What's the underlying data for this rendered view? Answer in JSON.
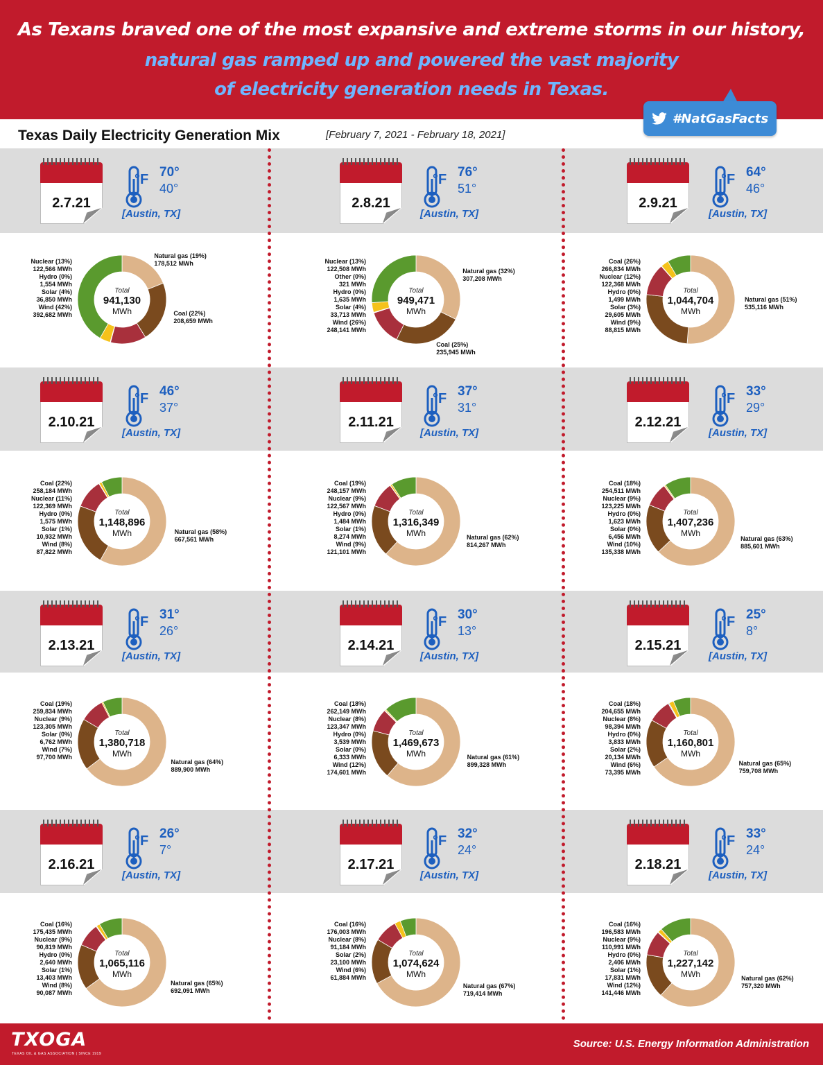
{
  "header": {
    "line1": "As Texans braved one of the most expansive and extreme storms in our history,",
    "line2": "natural gas ramped up and powered the vast majority",
    "line3": "of electricity generation needs in Texas.",
    "hashtag": "#NatGasFacts",
    "hashtag_icon": "twitter-bird-icon"
  },
  "subheader": {
    "title": "Texas Daily Electricity Generation Mix",
    "range": "[February 7, 2021 - February 18, 2021]"
  },
  "footer": {
    "logo": "TXOGA",
    "logo_tagline": "TEXAS OIL & GAS ASSOCIATION | SINCE 1919",
    "source": "Source: U.S. Energy Information Administration"
  },
  "colors": {
    "brand_red": "#c11b2c",
    "temperature_blue": "#1d5fbf",
    "natural_gas": "#ddb48a",
    "coal": "#7a4a1e",
    "nuclear": "#a8303c",
    "hydro": "#6fb6e6",
    "solar": "#f5c21b",
    "wind": "#5a9a2e",
    "other": "#8e6ab0"
  },
  "chart_data": [
    {
      "type": "pie",
      "date": "2.7.21",
      "high": "70°",
      "low": "40°",
      "unit": "°F",
      "location": "[Austin, TX]",
      "total_label": "Total",
      "total": "941,130",
      "total_unit": "MWh",
      "slices": [
        {
          "source": "Natural gas",
          "pct": "19%",
          "mwh": "178,512 MWh",
          "value": 178512
        },
        {
          "source": "Coal",
          "pct": "22%",
          "mwh": "208,659 MWh",
          "value": 208659
        },
        {
          "source": "Nuclear",
          "pct": "13%",
          "mwh": "122,566 MWh",
          "value": 122566
        },
        {
          "source": "Hydro",
          "pct": "0%",
          "mwh": "1,554 MWh",
          "value": 1554
        },
        {
          "source": "Solar",
          "pct": "4%",
          "mwh": "36,850 MWh",
          "value": 36850
        },
        {
          "source": "Wind",
          "pct": "42%",
          "mwh": "392,682 MWh",
          "value": 392682
        }
      ]
    },
    {
      "type": "pie",
      "date": "2.8.21",
      "high": "76°",
      "low": "51°",
      "unit": "°F",
      "location": "[Austin, TX]",
      "total_label": "Total",
      "total": "949,471",
      "total_unit": "MWh",
      "slices": [
        {
          "source": "Natural gas",
          "pct": "32%",
          "mwh": "307,208 MWh",
          "value": 307208
        },
        {
          "source": "Coal",
          "pct": "25%",
          "mwh": "235,945 MWh",
          "value": 235945
        },
        {
          "source": "Nuclear",
          "pct": "13%",
          "mwh": "122,508 MWh",
          "value": 122508
        },
        {
          "source": "Other",
          "pct": "0%",
          "mwh": "321 MWh",
          "value": 321
        },
        {
          "source": "Hydro",
          "pct": "0%",
          "mwh": "1,635 MWh",
          "value": 1635
        },
        {
          "source": "Solar",
          "pct": "4%",
          "mwh": "33,713 MWh",
          "value": 33713
        },
        {
          "source": "Wind",
          "pct": "26%",
          "mwh": "248,141 MWh",
          "value": 248141
        }
      ]
    },
    {
      "type": "pie",
      "date": "2.9.21",
      "high": "64°",
      "low": "46°",
      "unit": "°F",
      "location": "[Austin, TX]",
      "total_label": "Total",
      "total": "1,044,704",
      "total_unit": "MWh",
      "slices": [
        {
          "source": "Natural gas",
          "pct": "51%",
          "mwh": "535,116 MWh",
          "value": 535116
        },
        {
          "source": "Coal",
          "pct": "26%",
          "mwh": "266,834 MWh",
          "value": 266834
        },
        {
          "source": "Nuclear",
          "pct": "12%",
          "mwh": "122,368 MWh",
          "value": 122368
        },
        {
          "source": "Hydro",
          "pct": "0%",
          "mwh": "1,499 MWh",
          "value": 1499
        },
        {
          "source": "Solar",
          "pct": "3%",
          "mwh": "29,605 MWh",
          "value": 29605
        },
        {
          "source": "Wind",
          "pct": "9%",
          "mwh": "88,815 MWh",
          "value": 88815
        }
      ]
    },
    {
      "type": "pie",
      "date": "2.10.21",
      "high": "46°",
      "low": "37°",
      "unit": "°F",
      "location": "[Austin, TX]",
      "total_label": "Total",
      "total": "1,148,896",
      "total_unit": "MWh",
      "slices": [
        {
          "source": "Natural gas",
          "pct": "58%",
          "mwh": "667,561 MWh",
          "value": 667561
        },
        {
          "source": "Coal",
          "pct": "22%",
          "mwh": "258,184 MWh",
          "value": 258184
        },
        {
          "source": "Nuclear",
          "pct": "11%",
          "mwh": "122,369 MWh",
          "value": 122369
        },
        {
          "source": "Hydro",
          "pct": "0%",
          "mwh": "1,575 MWh",
          "value": 1575
        },
        {
          "source": "Solar",
          "pct": "1%",
          "mwh": "10,932 MWh",
          "value": 10932
        },
        {
          "source": "Wind",
          "pct": "8%",
          "mwh": "87,822 MWh",
          "value": 87822
        }
      ]
    },
    {
      "type": "pie",
      "date": "2.11.21",
      "high": "37°",
      "low": "31°",
      "unit": "°F",
      "location": "[Austin, TX]",
      "total_label": "Total",
      "total": "1,316,349",
      "total_unit": "MWh",
      "slices": [
        {
          "source": "Natural gas",
          "pct": "62%",
          "mwh": "814,267 MWh",
          "value": 814267
        },
        {
          "source": "Coal",
          "pct": "19%",
          "mwh": "248,157 MWh",
          "value": 248157
        },
        {
          "source": "Nuclear",
          "pct": "9%",
          "mwh": "122,567 MWh",
          "value": 122567
        },
        {
          "source": "Hydro",
          "pct": "0%",
          "mwh": "1,484 MWh",
          "value": 1484
        },
        {
          "source": "Solar",
          "pct": "1%",
          "mwh": "8,274 MWh",
          "value": 8274
        },
        {
          "source": "Wind",
          "pct": "9%",
          "mwh": "121,101 MWh",
          "value": 121101
        }
      ]
    },
    {
      "type": "pie",
      "date": "2.12.21",
      "high": "33°",
      "low": "29°",
      "unit": "°F",
      "location": "[Austin, TX]",
      "total_label": "Total",
      "total": "1,407,236",
      "total_unit": "MWh",
      "slices": [
        {
          "source": "Natural gas",
          "pct": "63%",
          "mwh": "885,601 MWh",
          "value": 885601
        },
        {
          "source": "Coal",
          "pct": "18%",
          "mwh": "254,511 MWh",
          "value": 254511
        },
        {
          "source": "Nuclear",
          "pct": "9%",
          "mwh": "123,225 MWh",
          "value": 123225
        },
        {
          "source": "Hydro",
          "pct": "0%",
          "mwh": "1,623 MWh",
          "value": 1623
        },
        {
          "source": "Solar",
          "pct": "0%",
          "mwh": "6,456 MWh",
          "value": 6456
        },
        {
          "source": "Wind",
          "pct": "10%",
          "mwh": "135,338 MWh",
          "value": 135338
        }
      ]
    },
    {
      "type": "pie",
      "date": "2.13.21",
      "high": "31°",
      "low": "26°",
      "unit": "°F",
      "location": "[Austin, TX]",
      "total_label": "Total",
      "total": "1,380,718",
      "total_unit": "MWh",
      "slices": [
        {
          "source": "Natural gas",
          "pct": "64%",
          "mwh": "889,900 MWh",
          "value": 889900
        },
        {
          "source": "Coal",
          "pct": "19%",
          "mwh": "259,834 MWh",
          "value": 259834
        },
        {
          "source": "Nuclear",
          "pct": "9%",
          "mwh": "123,305 MWh",
          "value": 123305
        },
        {
          "source": "Solar",
          "pct": "0%",
          "mwh": "6,762 MWh",
          "value": 6762
        },
        {
          "source": "Wind",
          "pct": "7%",
          "mwh": "97,700 MWh",
          "value": 97700
        }
      ]
    },
    {
      "type": "pie",
      "date": "2.14.21",
      "high": "30°",
      "low": "13°",
      "unit": "°F",
      "location": "[Austin, TX]",
      "total_label": "Total",
      "total": "1,469,673",
      "total_unit": "MWh",
      "slices": [
        {
          "source": "Natural gas",
          "pct": "61%",
          "mwh": "899,328 MWh",
          "value": 899328
        },
        {
          "source": "Coal",
          "pct": "18%",
          "mwh": "262,149 MWh",
          "value": 262149
        },
        {
          "source": "Nuclear",
          "pct": "8%",
          "mwh": "123,347 MWh",
          "value": 123347
        },
        {
          "source": "Hydro",
          "pct": "0%",
          "mwh": "3,539 MWh",
          "value": 3539
        },
        {
          "source": "Solar",
          "pct": "0%",
          "mwh": "6,333 MWh",
          "value": 6333
        },
        {
          "source": "Wind",
          "pct": "12%",
          "mwh": "174,601 MWh",
          "value": 174601
        }
      ]
    },
    {
      "type": "pie",
      "date": "2.15.21",
      "high": "25°",
      "low": "8°",
      "unit": "°F",
      "location": "[Austin, TX]",
      "total_label": "Total",
      "total": "1,160,801",
      "total_unit": "MWh",
      "slices": [
        {
          "source": "Natural gas",
          "pct": "65%",
          "mwh": "759,708 MWh",
          "value": 759708
        },
        {
          "source": "Coal",
          "pct": "18%",
          "mwh": "204,655 MWh",
          "value": 204655
        },
        {
          "source": "Nuclear",
          "pct": "8%",
          "mwh": "98,394 MWh",
          "value": 98394
        },
        {
          "source": "Hydro",
          "pct": "0%",
          "mwh": "3,833 MWh",
          "value": 3833
        },
        {
          "source": "Solar",
          "pct": "2%",
          "mwh": "20,134 MWh",
          "value": 20134
        },
        {
          "source": "Wind",
          "pct": "6%",
          "mwh": "73,395 MWh",
          "value": 73395
        }
      ]
    },
    {
      "type": "pie",
      "date": "2.16.21",
      "high": "26°",
      "low": "7°",
      "unit": "°F",
      "location": "[Austin, TX]",
      "total_label": "Total",
      "total": "1,065,116",
      "total_unit": "MWh",
      "slices": [
        {
          "source": "Natural gas",
          "pct": "65%",
          "mwh": "692,091 MWh",
          "value": 692091
        },
        {
          "source": "Coal",
          "pct": "16%",
          "mwh": "175,435 MWh",
          "value": 175435
        },
        {
          "source": "Nuclear",
          "pct": "9%",
          "mwh": "90,819 MWh",
          "value": 90819
        },
        {
          "source": "Hydro",
          "pct": "0%",
          "mwh": "2,640 MWh",
          "value": 2640
        },
        {
          "source": "Solar",
          "pct": "1%",
          "mwh": "13,403 MWh",
          "value": 13403
        },
        {
          "source": "Wind",
          "pct": "8%",
          "mwh": "90,087 MWh",
          "value": 90087
        }
      ]
    },
    {
      "type": "pie",
      "date": "2.17.21",
      "high": "32°",
      "low": "24°",
      "unit": "°F",
      "location": "[Austin, TX]",
      "total_label": "Total",
      "total": "1,074,624",
      "total_unit": "MWh",
      "slices": [
        {
          "source": "Natural gas",
          "pct": "67%",
          "mwh": "719,414 MWh",
          "value": 719414
        },
        {
          "source": "Coal",
          "pct": "16%",
          "mwh": "176,003 MWh",
          "value": 176003
        },
        {
          "source": "Nuclear",
          "pct": "8%",
          "mwh": "91,184 MWh",
          "value": 91184
        },
        {
          "source": "Solar",
          "pct": "2%",
          "mwh": "23,100 MWh",
          "value": 23100
        },
        {
          "source": "Wind",
          "pct": "6%",
          "mwh": "61,884 MWh",
          "value": 61884
        }
      ]
    },
    {
      "type": "pie",
      "date": "2.18.21",
      "high": "33°",
      "low": "24°",
      "unit": "°F",
      "location": "[Austin, TX]",
      "total_label": "Total",
      "total": "1,227,142",
      "total_unit": "MWh",
      "slices": [
        {
          "source": "Natural gas",
          "pct": "62%",
          "mwh": "757,320 MWh",
          "value": 757320
        },
        {
          "source": "Coal",
          "pct": "16%",
          "mwh": "196,583 MWh",
          "value": 196583
        },
        {
          "source": "Nuclear",
          "pct": "9%",
          "mwh": "110,991 MWh",
          "value": 110991
        },
        {
          "source": "Hydro",
          "pct": "0%",
          "mwh": "2,406 MWh",
          "value": 2406
        },
        {
          "source": "Solar",
          "pct": "1%",
          "mwh": "17,831 MWh",
          "value": 17831
        },
        {
          "source": "Wind",
          "pct": "12%",
          "mwh": "141,446 MWh",
          "value": 141446
        }
      ]
    }
  ]
}
